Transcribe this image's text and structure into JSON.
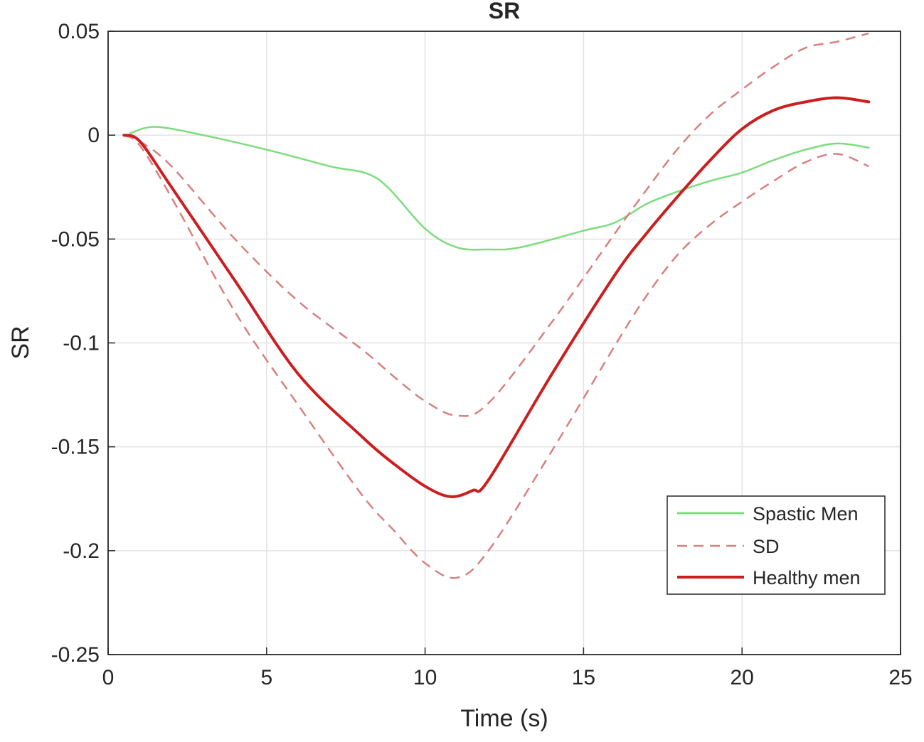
{
  "chart_data": {
    "type": "line",
    "title": "SR",
    "xlabel": "Time (s)",
    "ylabel": "SR",
    "xlim": [
      0,
      25
    ],
    "ylim": [
      -0.25,
      0.05
    ],
    "xticks": [
      0,
      5,
      10,
      15,
      20,
      25
    ],
    "xtick_labels": [
      "0",
      "5",
      "10",
      "15",
      "20",
      "25"
    ],
    "yticks": [
      0.05,
      0,
      -0.05,
      -0.1,
      -0.15,
      -0.2,
      -0.25
    ],
    "ytick_labels": [
      "0.05",
      "0",
      "-0.05",
      "-0.1",
      "-0.15",
      "-0.2",
      "-0.25"
    ],
    "grid": true,
    "legend_position": "bottom-right",
    "series": [
      {
        "name": "Spastic Men",
        "color": "#7ddc7d",
        "style": "solid",
        "x": [
          0.7,
          1.5,
          3,
          5,
          7,
          8.5,
          10,
          11,
          12,
          13,
          15,
          16,
          17,
          18,
          19,
          20,
          21,
          22,
          23,
          24
        ],
        "y": [
          0.001,
          0.004,
          0.0,
          -0.007,
          -0.015,
          -0.021,
          -0.045,
          -0.054,
          -0.055,
          -0.054,
          -0.046,
          -0.042,
          -0.033,
          -0.027,
          -0.022,
          -0.018,
          -0.012,
          -0.007,
          -0.004,
          -0.006
        ]
      },
      {
        "name": "SD",
        "color": "#d98080",
        "style": "dashed",
        "x": [
          0.5,
          1,
          2,
          4,
          6,
          8,
          9,
          10,
          11,
          12,
          14,
          16,
          17,
          18,
          19,
          20,
          21,
          22,
          23,
          24
        ],
        "y": [
          0.0,
          -0.003,
          -0.015,
          -0.05,
          -0.08,
          -0.103,
          -0.116,
          -0.128,
          -0.135,
          -0.129,
          -0.09,
          -0.047,
          -0.026,
          -0.006,
          0.01,
          0.022,
          0.033,
          0.042,
          0.045,
          0.049
        ]
      },
      {
        "name": "",
        "color": "#d98080",
        "style": "dashed",
        "x": [
          0.5,
          1,
          2,
          4,
          6,
          8,
          9,
          10,
          11,
          12,
          14,
          16,
          17,
          18,
          19,
          20,
          21,
          22,
          23,
          24
        ],
        "y": [
          0.0,
          -0.005,
          -0.03,
          -0.085,
          -0.13,
          -0.173,
          -0.19,
          -0.206,
          -0.213,
          -0.2,
          -0.152,
          -0.101,
          -0.077,
          -0.057,
          -0.043,
          -0.032,
          -0.022,
          -0.013,
          -0.009,
          -0.015
        ]
      },
      {
        "name": "Healthy men",
        "color": "#cc1e1e",
        "style": "solid",
        "x": [
          0.5,
          1,
          2,
          4,
          6,
          8,
          9,
          10,
          10.8,
          11.5,
          12,
          14,
          16,
          17,
          18,
          19,
          20,
          21,
          22,
          23,
          24
        ],
        "y": [
          0.0,
          -0.003,
          -0.025,
          -0.07,
          -0.115,
          -0.145,
          -0.158,
          -0.169,
          -0.174,
          -0.171,
          -0.166,
          -0.115,
          -0.067,
          -0.047,
          -0.029,
          -0.012,
          0.003,
          0.012,
          0.016,
          0.018,
          0.016
        ]
      }
    ]
  }
}
